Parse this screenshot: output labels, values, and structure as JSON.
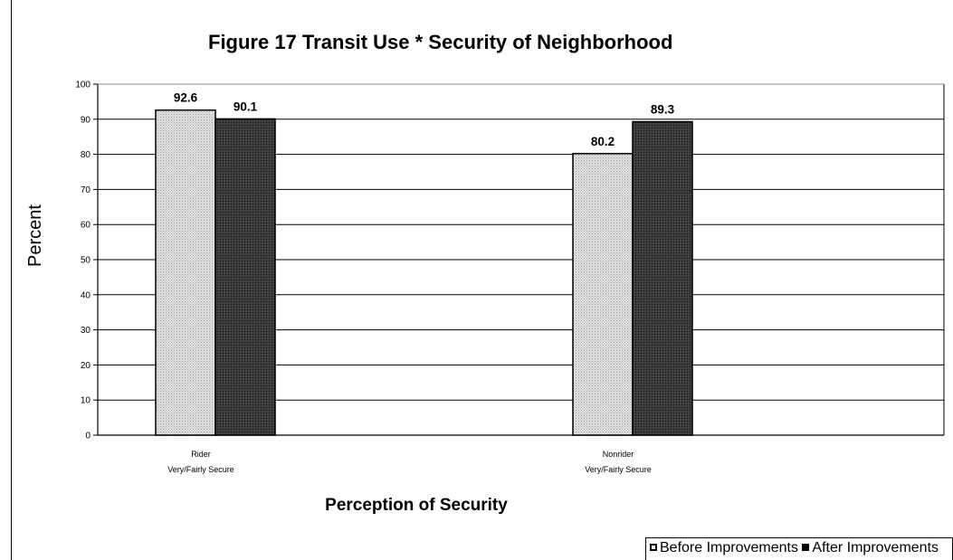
{
  "chart_data": {
    "type": "bar",
    "title": "Figure 17  Transit Use * Security of Neighborhood",
    "xlabel": "Perception of Security",
    "ylabel": "Percent",
    "categories": [
      [
        "Rider",
        "Very/Fairly Secure"
      ],
      [
        "Nonrider",
        "Very/Fairly Secure"
      ]
    ],
    "series": [
      {
        "name": "Before Improvements",
        "values": [
          92.6,
          80.2
        ],
        "color": "#c8c8c8"
      },
      {
        "name": "After Improvements",
        "values": [
          90.1,
          89.3
        ],
        "color": "#333333"
      }
    ],
    "ylim": [
      0,
      100
    ],
    "yticks": [
      0,
      10,
      20,
      30,
      40,
      50,
      60,
      70,
      80,
      90,
      100
    ],
    "grid": true,
    "legend_position": "bottom-right"
  }
}
